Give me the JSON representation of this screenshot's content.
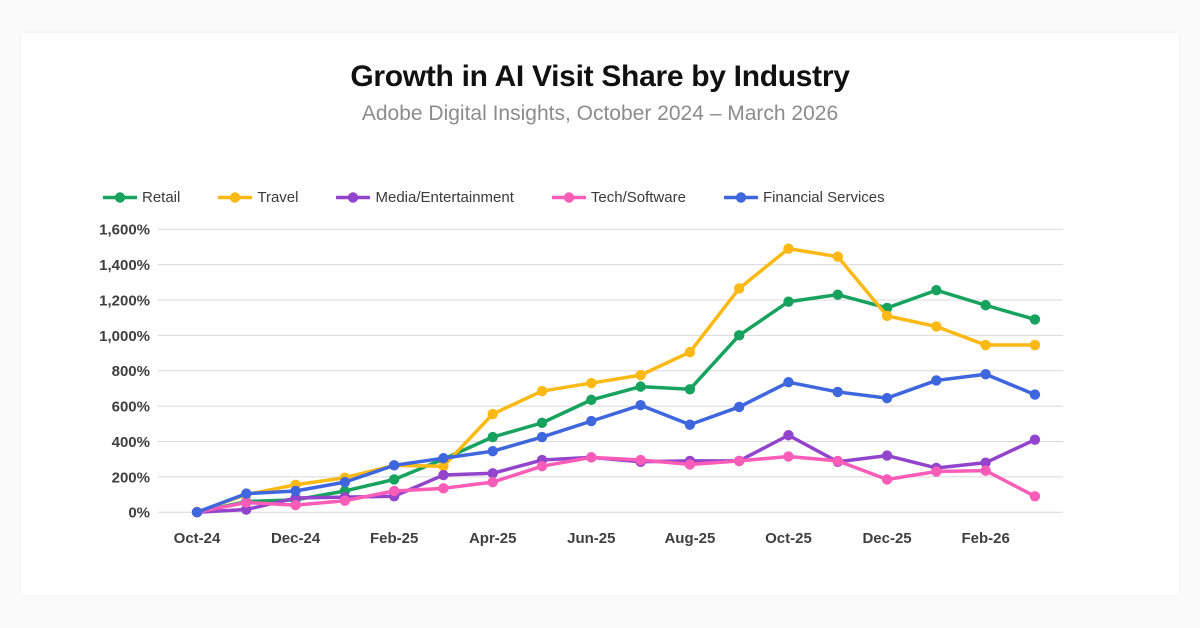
{
  "page": {
    "title": "Growth in AI Visit Share by Industry",
    "subtitle": "Adobe Digital Insights, October 2024 – March 2026"
  },
  "chart_data": {
    "type": "line",
    "title": "Growth in AI Visit Share by Industry",
    "subtitle": "Adobe Digital Insights, October 2024 – March 2026",
    "x": [
      "Oct-24",
      "Nov-24",
      "Dec-24",
      "Jan-25",
      "Feb-25",
      "Mar-25",
      "Apr-25",
      "May-25",
      "Jun-25",
      "Jul-25",
      "Aug-25",
      "Sep-25",
      "Oct-25",
      "Nov-25",
      "Dec-25",
      "Jan-26",
      "Feb-26",
      "Mar-26"
    ],
    "x_tick_labels": [
      "Oct-24",
      "Dec-24",
      "Feb-25",
      "Apr-25",
      "Jun-25",
      "Aug-25",
      "Oct-25",
      "Dec-25",
      "Feb-26"
    ],
    "y_ticks": [
      0,
      200,
      400,
      600,
      800,
      1000,
      1200,
      1400,
      1600
    ],
    "y_tick_labels": [
      "0%",
      "200%",
      "400%",
      "600%",
      "800%",
      "1,000%",
      "1,200%",
      "1,400%",
      "1,600%"
    ],
    "ylim": [
      0,
      1600
    ],
    "grid": true,
    "legend_position": "top",
    "unit": "percent",
    "series": [
      {
        "name": "Retail",
        "color": "#17a25e",
        "values": [
          0,
          60,
          70,
          120,
          185,
          300,
          425,
          505,
          635,
          710,
          695,
          1000,
          1190,
          1230,
          1155,
          1255,
          1170,
          1090
        ]
      },
      {
        "name": "Travel",
        "color": "#fdb913",
        "values": [
          0,
          100,
          155,
          195,
          265,
          260,
          555,
          685,
          730,
          775,
          905,
          1265,
          1490,
          1445,
          1110,
          1050,
          945,
          945
        ]
      },
      {
        "name": "Media/Entertainment",
        "color": "#9344cc",
        "values": [
          0,
          15,
          80,
          85,
          90,
          210,
          220,
          295,
          310,
          285,
          290,
          290,
          435,
          285,
          320,
          250,
          280,
          410
        ]
      },
      {
        "name": "Tech/Software",
        "color": "#fa5cb8",
        "values": [
          0,
          55,
          40,
          65,
          120,
          135,
          170,
          260,
          310,
          295,
          270,
          290,
          315,
          290,
          185,
          230,
          235,
          90
        ]
      },
      {
        "name": "Financial Services",
        "color": "#3e66df",
        "values": [
          0,
          105,
          120,
          170,
          265,
          305,
          345,
          425,
          515,
          605,
          495,
          595,
          735,
          680,
          645,
          745,
          780,
          665
        ]
      }
    ],
    "style": {
      "grid_color": "#d9d9d9",
      "axis_text_color": "#3f3f3f",
      "line_width": 3.5,
      "marker_radius": 5.2
    }
  }
}
